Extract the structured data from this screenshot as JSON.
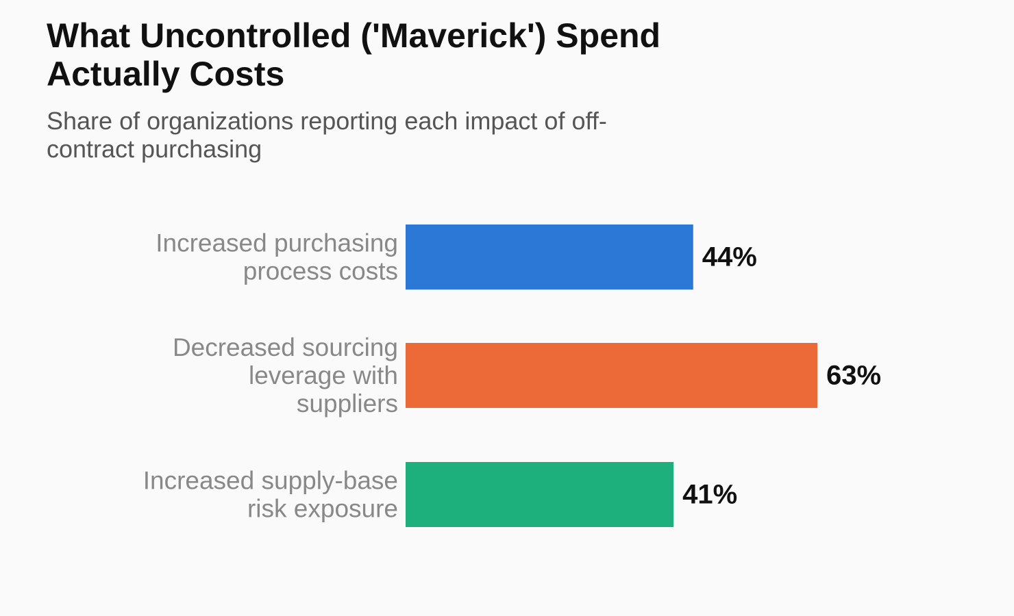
{
  "chart_data": {
    "type": "bar",
    "orientation": "horizontal",
    "title": "What Uncontrolled ('Maverick') Spend Actually Costs",
    "subtitle": "Share of organizations reporting each impact of off-contract purchasing",
    "categories": [
      "Increased purchasing process costs",
      "Decreased sourcing leverage with suppliers",
      "Increased supply-base risk exposure"
    ],
    "category_lines": [
      [
        "Increased purchasing",
        "process costs"
      ],
      [
        "Decreased sourcing",
        "leverage with",
        "suppliers"
      ],
      [
        "Increased supply-base",
        "risk exposure"
      ]
    ],
    "values": [
      44,
      63,
      41
    ],
    "value_labels": [
      "44%",
      "63%",
      "41%"
    ],
    "colors": [
      "#2b78d6",
      "#ec6a38",
      "#1db07c"
    ],
    "xlim": [
      0,
      100
    ],
    "grid": false,
    "legend": "none"
  }
}
